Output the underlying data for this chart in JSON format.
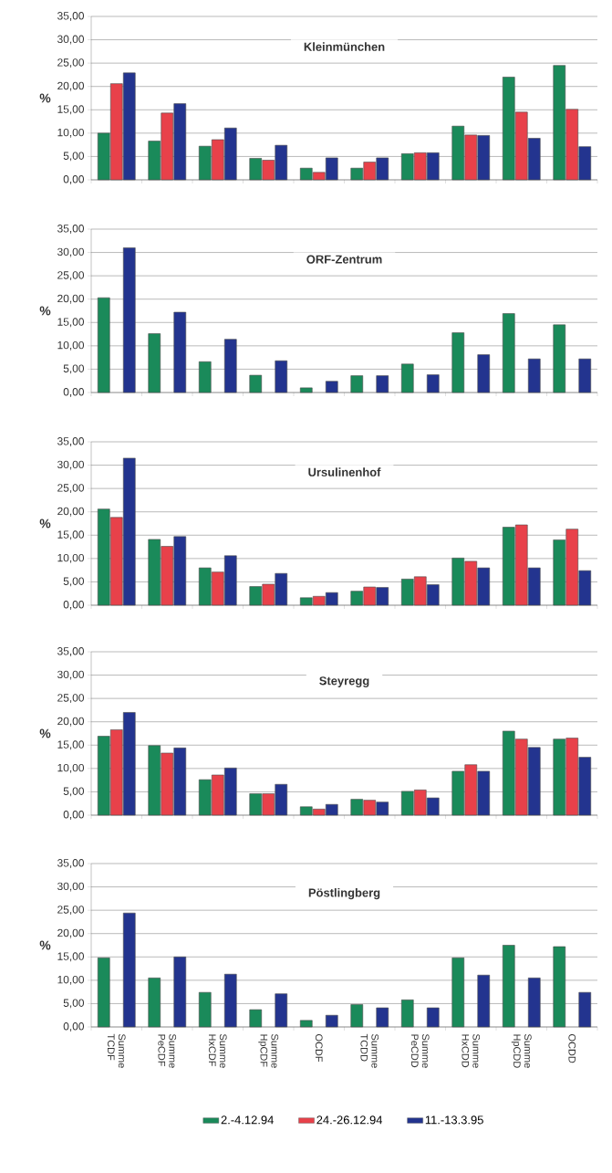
{
  "chart_data": [
    {
      "type": "bar",
      "title": "Kleinmünchen",
      "ylabel": "%",
      "categories": [
        null,
        null,
        null,
        null,
        null,
        null,
        null,
        null,
        null,
        null
      ],
      "tick_labels": "y",
      "grid": "y",
      "ylim": [
        0,
        35
      ],
      "yticks": [
        {
          "value": 0,
          "label": "0,00"
        },
        {
          "value": 5,
          "label": "5,00"
        },
        {
          "value": 10,
          "label": "10,00"
        },
        {
          "value": 15,
          "label": "15,00"
        },
        {
          "value": 20,
          "label": "20,00"
        },
        {
          "value": 25,
          "label": "25,00"
        },
        {
          "value": 30,
          "label": "30,00"
        },
        {
          "value": 35,
          "label": "35,00"
        }
      ],
      "series": [
        {
          "color": "#1a8a5a",
          "values": [
            10.0,
            8.3,
            7.2,
            4.6,
            2.5,
            2.5,
            5.6,
            11.5,
            22.0,
            24.5
          ]
        },
        {
          "color": "#e8414a",
          "values": [
            20.6,
            14.3,
            8.6,
            4.2,
            1.6,
            3.8,
            5.8,
            9.6,
            14.5,
            15.1
          ]
        },
        {
          "color": "#23348f",
          "values": [
            22.9,
            16.3,
            11.1,
            7.4,
            4.7,
            4.7,
            5.8,
            9.5,
            8.9,
            7.1
          ]
        }
      ]
    },
    {
      "type": "bar",
      "title": "ORF-Zentrum",
      "ylabel": "%",
      "categories": [
        null,
        null,
        null,
        null,
        null,
        null,
        null,
        null,
        null,
        null
      ],
      "tick_labels": "y",
      "grid": "y",
      "ylim": [
        0,
        35
      ],
      "yticks": [
        {
          "value": 0,
          "label": "0,00"
        },
        {
          "value": 5,
          "label": "5,00"
        },
        {
          "value": 10,
          "label": "10,00"
        },
        {
          "value": 15,
          "label": "15,00"
        },
        {
          "value": 20,
          "label": "20,00"
        },
        {
          "value": 25,
          "label": "25,00"
        },
        {
          "value": 30,
          "label": "30,00"
        },
        {
          "value": 35,
          "label": "35,00"
        }
      ],
      "series": [
        {
          "color": "#1a8a5a",
          "values": [
            20.3,
            12.6,
            6.6,
            3.7,
            1.0,
            3.6,
            6.1,
            12.8,
            16.9,
            14.5
          ]
        },
        {
          "color": "#e8414a",
          "values": [
            null,
            null,
            null,
            null,
            null,
            null,
            null,
            null,
            null,
            null
          ]
        },
        {
          "color": "#23348f",
          "values": [
            31.0,
            17.2,
            11.4,
            6.8,
            2.4,
            3.6,
            3.8,
            8.1,
            7.2,
            7.2
          ]
        }
      ]
    },
    {
      "type": "bar",
      "title": "Ursulinenhof",
      "ylabel": "%",
      "categories": [
        null,
        null,
        null,
        null,
        null,
        null,
        null,
        null,
        null,
        null
      ],
      "tick_labels": "y",
      "grid": "y",
      "ylim": [
        0,
        35
      ],
      "yticks": [
        {
          "value": 0,
          "label": "0,00"
        },
        {
          "value": 5,
          "label": "5,00"
        },
        {
          "value": 10,
          "label": "10,00"
        },
        {
          "value": 15,
          "label": "15,00"
        },
        {
          "value": 20,
          "label": "20,00"
        },
        {
          "value": 25,
          "label": "25,00"
        },
        {
          "value": 30,
          "label": "30,00"
        },
        {
          "value": 35,
          "label": "35,00"
        }
      ],
      "series": [
        {
          "color": "#1a8a5a",
          "values": [
            20.6,
            14.1,
            8.0,
            4.0,
            1.6,
            3.0,
            5.6,
            10.1,
            16.7,
            14.0
          ]
        },
        {
          "color": "#e8414a",
          "values": [
            18.8,
            12.6,
            7.1,
            4.5,
            1.9,
            3.9,
            6.1,
            9.4,
            17.2,
            16.3
          ]
        },
        {
          "color": "#23348f",
          "values": [
            31.5,
            14.7,
            10.6,
            6.8,
            2.7,
            3.8,
            4.4,
            8.0,
            8.0,
            7.4
          ]
        }
      ]
    },
    {
      "type": "bar",
      "title": "Steyregg",
      "ylabel": "%",
      "categories": [
        null,
        null,
        null,
        null,
        null,
        null,
        null,
        null,
        null,
        null
      ],
      "tick_labels": "y",
      "grid": "y",
      "ylim": [
        0,
        35
      ],
      "yticks": [
        {
          "value": 0,
          "label": "0,00"
        },
        {
          "value": 5,
          "label": "5,00"
        },
        {
          "value": 10,
          "label": "10,00"
        },
        {
          "value": 15,
          "label": "15,00"
        },
        {
          "value": 20,
          "label": "20,00"
        },
        {
          "value": 25,
          "label": "25,00"
        },
        {
          "value": 30,
          "label": "30,00"
        },
        {
          "value": 35,
          "label": "35,00"
        }
      ],
      "series": [
        {
          "color": "#1a8a5a",
          "values": [
            16.9,
            14.9,
            7.6,
            4.6,
            1.8,
            3.4,
            5.1,
            9.4,
            18.0,
            16.3
          ]
        },
        {
          "color": "#e8414a",
          "values": [
            18.3,
            13.3,
            8.6,
            4.6,
            1.3,
            3.2,
            5.4,
            10.8,
            16.3,
            16.5
          ]
        },
        {
          "color": "#23348f",
          "values": [
            22.0,
            14.4,
            10.1,
            6.6,
            2.3,
            2.8,
            3.7,
            9.4,
            14.5,
            12.4
          ]
        }
      ]
    },
    {
      "type": "bar",
      "title": "Pöstlingberg",
      "ylabel": "%",
      "categories": [
        "Summe TCDF",
        "Summe PeCDF",
        "Summe HxCDF",
        "Summe HpCDF",
        "OCDF",
        "Summe TCDD",
        "Summe PeCDD",
        "Summe HxCDD",
        "Summe HpCDD",
        "OCDD"
      ],
      "grid": "y",
      "ylim": [
        0,
        35
      ],
      "legend": "bottom",
      "yticks": [
        {
          "value": 0,
          "label": "0,00"
        },
        {
          "value": 5,
          "label": "5,00"
        },
        {
          "value": 10,
          "label": "10,00"
        },
        {
          "value": 15,
          "label": "15,00"
        },
        {
          "value": 20,
          "label": "20,00"
        },
        {
          "value": 25,
          "label": "25,00"
        },
        {
          "value": 30,
          "label": "30,00"
        },
        {
          "value": 35,
          "label": "35,00"
        }
      ],
      "series": [
        {
          "name": "2.-4.12.94",
          "color": "#1a8a5a",
          "values": [
            14.8,
            10.5,
            7.4,
            3.7,
            1.4,
            4.8,
            5.8,
            14.8,
            17.5,
            17.2
          ]
        },
        {
          "name": "24.-26.12.94",
          "color": "#e8414a",
          "values": [
            null,
            null,
            null,
            null,
            null,
            null,
            null,
            null,
            null,
            null
          ]
        },
        {
          "name": "11.-13.3.95",
          "color": "#23348f",
          "values": [
            24.4,
            15.0,
            11.3,
            7.1,
            2.5,
            4.1,
            4.1,
            11.1,
            10.5,
            7.4
          ]
        }
      ]
    }
  ]
}
